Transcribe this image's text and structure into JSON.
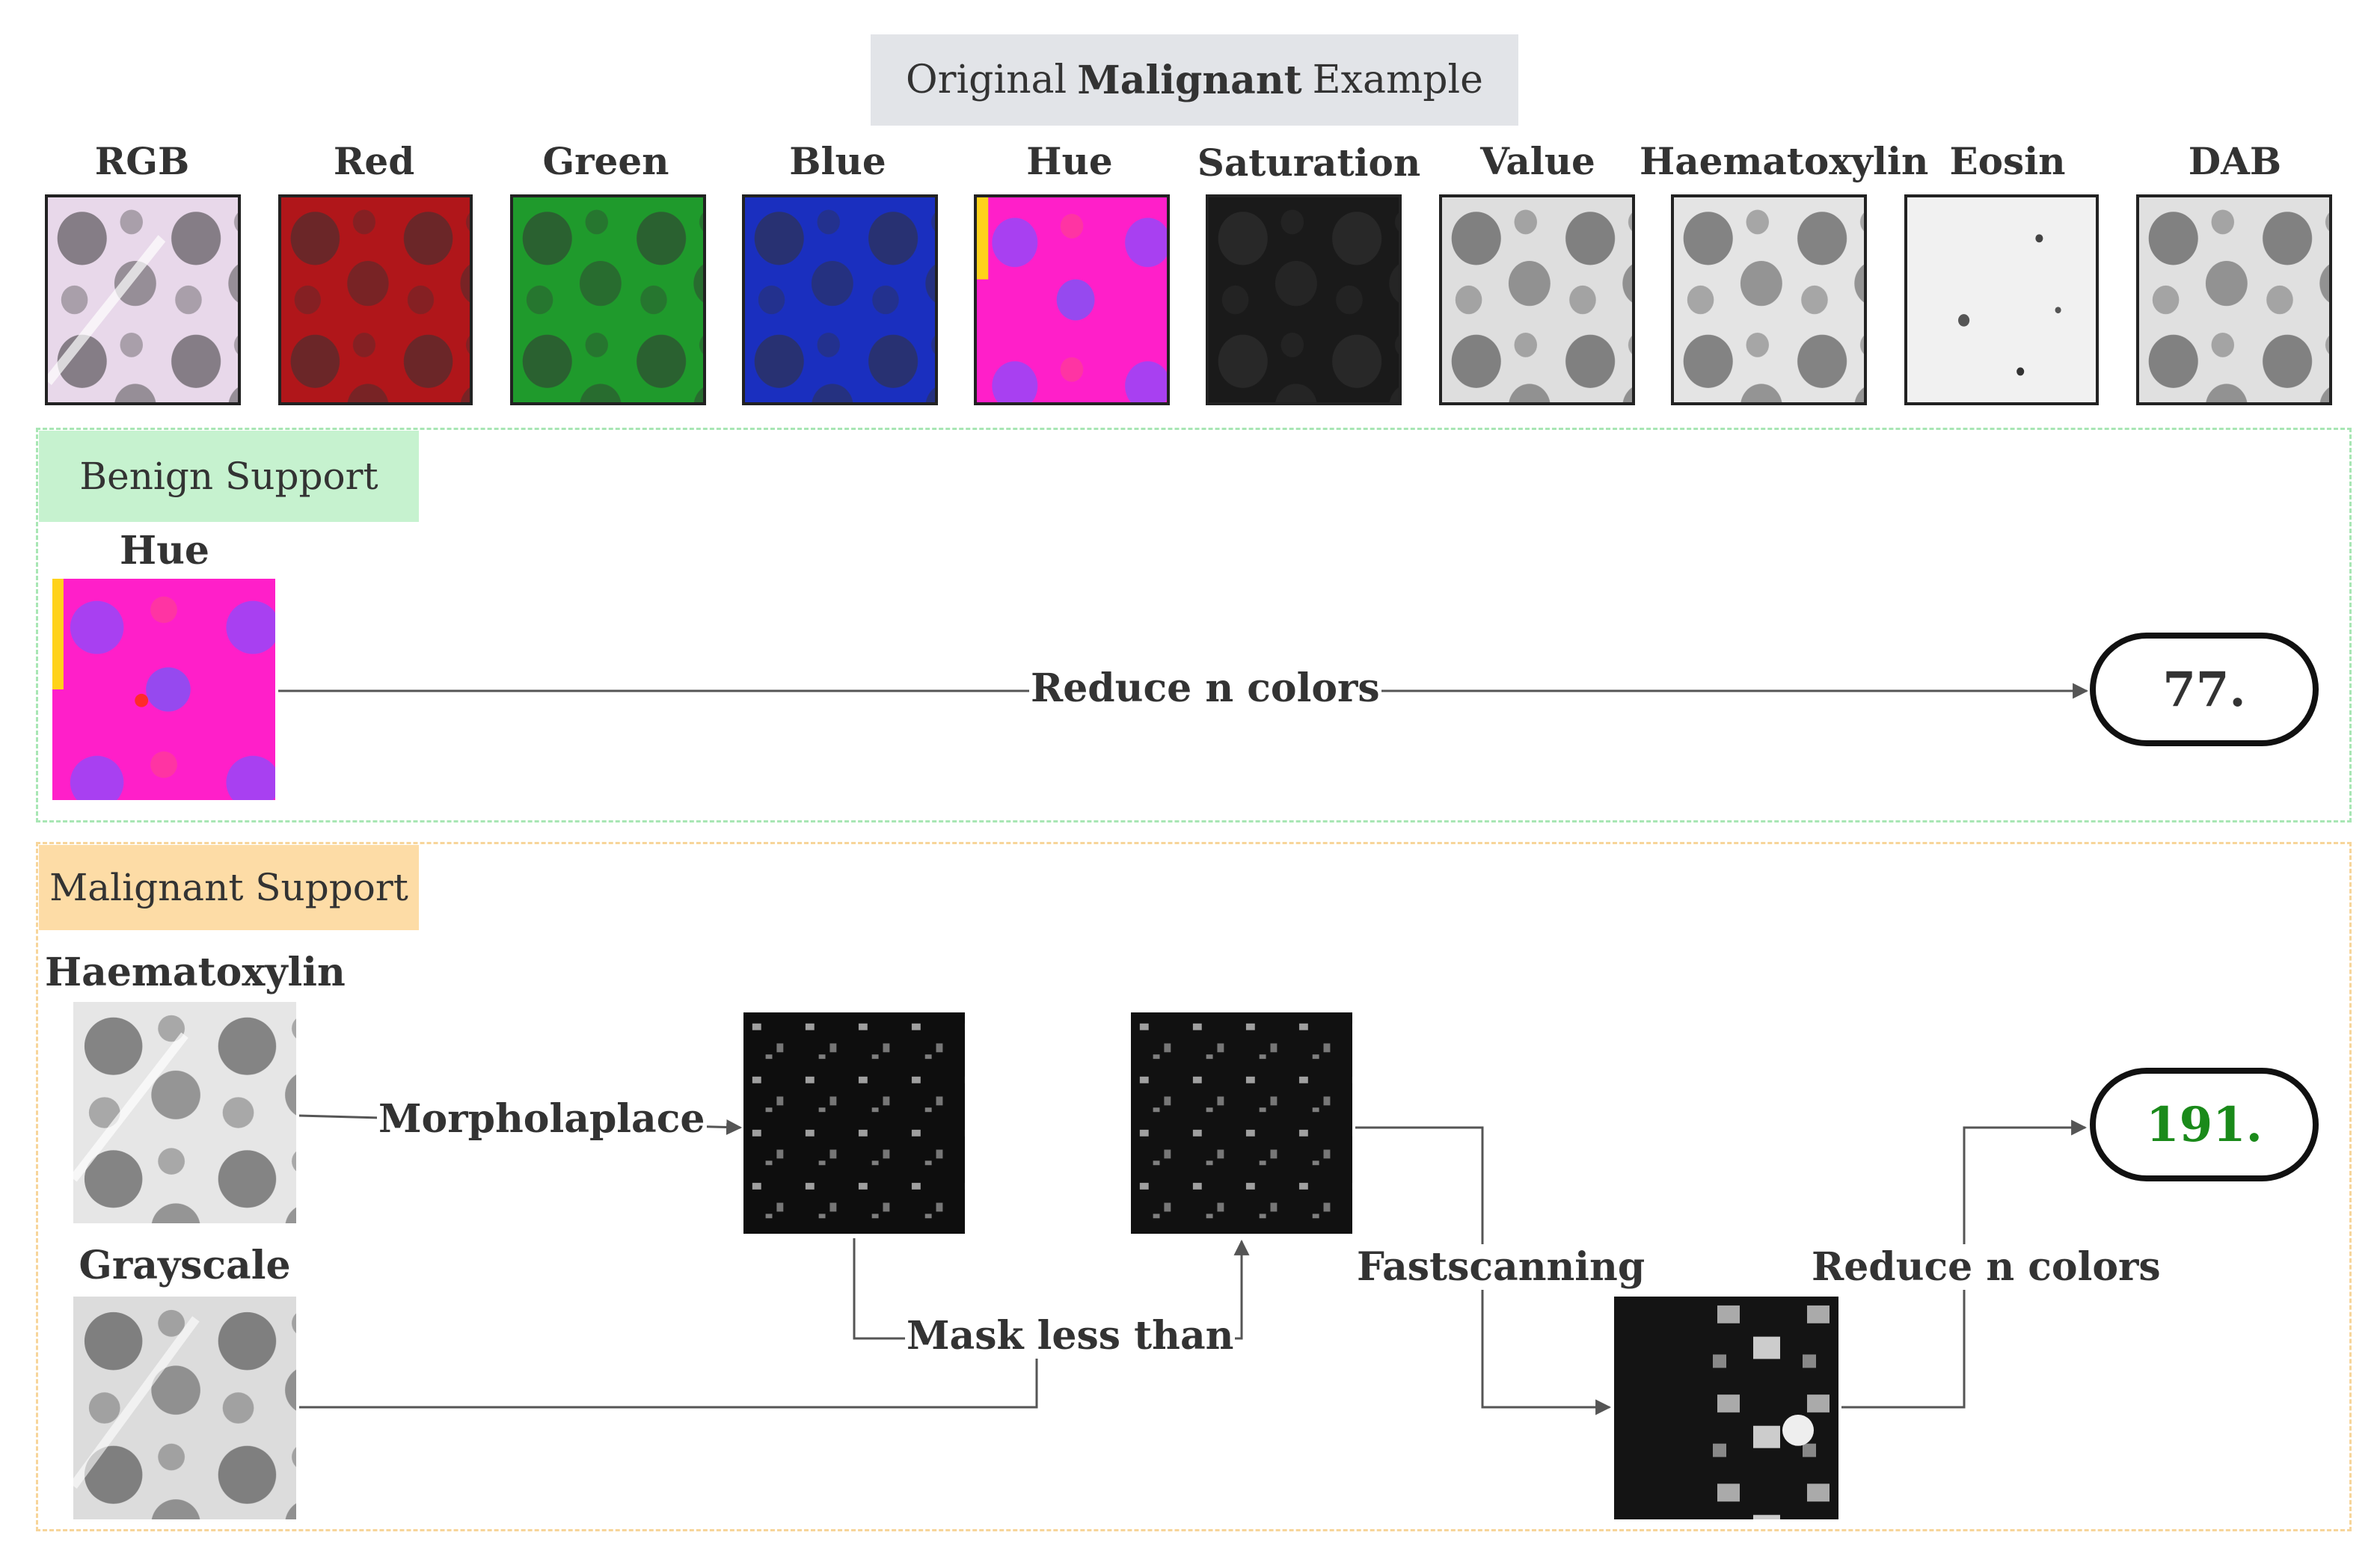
{
  "header": {
    "prefix": "Original",
    "bold": "Malignant",
    "suffix": "Example"
  },
  "channels": [
    "RGB",
    "Red",
    "Green",
    "Blue",
    "Hue",
    "Saturation",
    "Value",
    "Haematoxylin",
    "Eosin",
    "DAB"
  ],
  "benign": {
    "tag": "Benign Support",
    "input_label": "Hue",
    "edge_label": "Reduce n colors",
    "result": "77."
  },
  "malignant": {
    "tag": "Malignant Support",
    "input1_label": "Haematoxylin",
    "input2_label": "Grayscale",
    "edge_morph": "Morpholaplace",
    "edge_mask": "Mask less than",
    "edge_fast": "Fastscanning",
    "edge_reduce": "Reduce n colors",
    "result": "191."
  },
  "colors": {
    "benign_tag_bg": "#c6f2cf",
    "benign_border": "#a8e6b4",
    "malignant_tag_bg": "#fddca6",
    "malignant_border": "#f7d59a",
    "header_bg": "#e2e4e8",
    "result_highlight": "#1a8a1a"
  }
}
